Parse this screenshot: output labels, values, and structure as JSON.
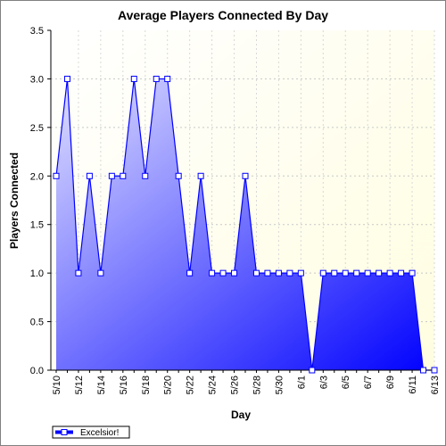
{
  "chart_data": {
    "type": "area",
    "title": "Average Players Connected By Day",
    "xlabel": "Day",
    "ylabel": "Players Connected",
    "ylim": [
      0,
      3.5
    ],
    "yticks": [
      "0.0",
      "0.5",
      "1.0",
      "1.5",
      "2.0",
      "2.5",
      "3.0",
      "3.5"
    ],
    "x": [
      "5/10",
      "5/11",
      "5/12",
      "5/13",
      "5/14",
      "5/15",
      "5/16",
      "5/17",
      "5/18",
      "5/19",
      "5/20",
      "5/21",
      "5/22",
      "5/23",
      "5/24",
      "5/25",
      "5/26",
      "5/27",
      "5/28",
      "5/29",
      "5/30",
      "5/31",
      "6/1",
      "6/2",
      "6/3",
      "6/4",
      "6/5",
      "6/6",
      "6/7",
      "6/8",
      "6/9",
      "6/10",
      "6/11",
      "6/12",
      "6/13"
    ],
    "xtick_labels": [
      "5/10",
      "5/12",
      "5/14",
      "5/16",
      "5/18",
      "5/20",
      "5/22",
      "5/24",
      "5/26",
      "5/28",
      "5/30",
      "6/1",
      "6/3",
      "6/5",
      "6/7",
      "6/9",
      "6/11",
      "6/13"
    ],
    "series": [
      {
        "name": "Excelsior!",
        "values": [
          2,
          3,
          1,
          2,
          1,
          2,
          2,
          3,
          2,
          3,
          3,
          2,
          1,
          2,
          1,
          1,
          1,
          2,
          1,
          1,
          1,
          1,
          1,
          0,
          1,
          1,
          1,
          1,
          1,
          1,
          1,
          1,
          1,
          0,
          0
        ]
      }
    ],
    "grid": "dashed",
    "legend_position": "bottom-left",
    "colors": {
      "plot_background": "#fffde0",
      "line": "#0000ff",
      "fill_light": "#e0e0ff",
      "fill_dark": "#0000ff",
      "marker_fill": "#ffffff"
    }
  }
}
